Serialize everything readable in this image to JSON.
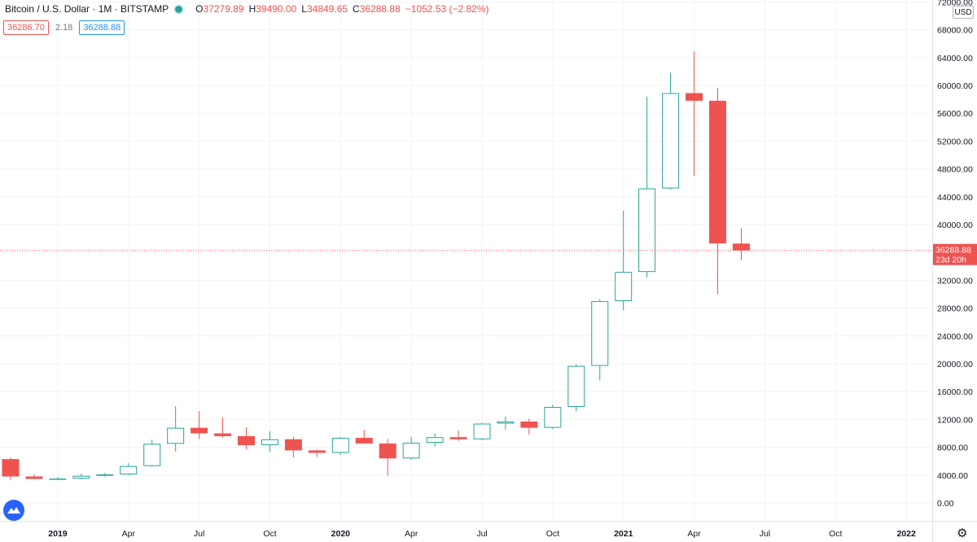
{
  "legend": {
    "symbol": "Bitcoin / U.S. Dollar · 1M · BITSTAMP",
    "o_label": "O",
    "o": "37279.89",
    "h_label": "H",
    "h": "39490.00",
    "l_label": "L",
    "l": "34849.65",
    "c_label": "C",
    "c": "36288.88",
    "change": "−1052.53 (−2.82%)"
  },
  "trade": {
    "sell": "36286.70",
    "spread": "2.18",
    "buy": "36288.88"
  },
  "currency": "USD",
  "price_label": {
    "price": "36288.88",
    "countdown": "23d 20h"
  },
  "colors": {
    "up": "#26a69a",
    "down": "#ef5350",
    "grid": "#f0f3fa",
    "axis_text": "#131722"
  },
  "chart_data": {
    "type": "candlestick",
    "x_tick_labels": [
      "2019",
      "Apr",
      "Jul",
      "Oct",
      "2020",
      "Apr",
      "Jul",
      "Oct",
      "2021",
      "Apr",
      "Jul",
      "Oct",
      "2022"
    ],
    "y_tick_labels": [
      "0.00",
      "4000.00",
      "8000.00",
      "12000.00",
      "16000.00",
      "20000.00",
      "24000.00",
      "28000.00",
      "32000.00",
      "36000.00",
      "40000.00",
      "44000.00",
      "48000.00",
      "52000.00",
      "56000.00",
      "60000.00",
      "64000.00",
      "68000.00",
      "72000.00"
    ],
    "ylim": [
      0,
      72000
    ],
    "last_price": 36288.88,
    "candles": [
      {
        "date": "2018-12",
        "open": 6300,
        "high": 6600,
        "low": 3300,
        "close": 3800
      },
      {
        "date": "2019-01",
        "open": 3800,
        "high": 4100,
        "low": 3400,
        "close": 3450
      },
      {
        "date": "2019-02",
        "open": 3450,
        "high": 3700,
        "low": 3300,
        "close": 3500
      },
      {
        "date": "2019-03",
        "open": 3500,
        "high": 4200,
        "low": 3400,
        "close": 3900
      },
      {
        "date": "2019-04",
        "open": 3900,
        "high": 4300,
        "low": 3800,
        "close": 4100
      },
      {
        "date": "2019-05",
        "open": 4100,
        "high": 5700,
        "low": 4000,
        "close": 5300
      },
      {
        "date": "2019-06",
        "open": 5300,
        "high": 9100,
        "low": 5200,
        "close": 8500
      },
      {
        "date": "2019-07",
        "open": 8500,
        "high": 13900,
        "low": 7400,
        "close": 10800
      },
      {
        "date": "2019-08",
        "open": 10800,
        "high": 13200,
        "low": 9200,
        "close": 10000
      },
      {
        "date": "2019-09",
        "open": 10000,
        "high": 12300,
        "low": 9400,
        "close": 9600
      },
      {
        "date": "2019-10",
        "open": 9600,
        "high": 10900,
        "low": 7700,
        "close": 8300
      },
      {
        "date": "2019-11",
        "open": 8300,
        "high": 10300,
        "low": 7300,
        "close": 9150
      },
      {
        "date": "2019-12",
        "open": 9150,
        "high": 9500,
        "low": 6500,
        "close": 7550
      },
      {
        "date": "2020-01",
        "open": 7550,
        "high": 7700,
        "low": 6600,
        "close": 7200
      },
      {
        "date": "2020-02",
        "open": 7200,
        "high": 9500,
        "low": 6900,
        "close": 9350
      },
      {
        "date": "2020-03",
        "open": 9350,
        "high": 10500,
        "low": 8500,
        "close": 8550
      },
      {
        "date": "2020-04",
        "open": 8550,
        "high": 9200,
        "low": 3900,
        "close": 6400
      },
      {
        "date": "2020-05",
        "open": 6400,
        "high": 9500,
        "low": 6200,
        "close": 8650
      },
      {
        "date": "2020-06",
        "open": 8650,
        "high": 10000,
        "low": 8100,
        "close": 9450
      },
      {
        "date": "2020-07",
        "open": 9450,
        "high": 10400,
        "low": 8900,
        "close": 9150
      },
      {
        "date": "2020-08",
        "open": 9150,
        "high": 11500,
        "low": 9000,
        "close": 11400
      },
      {
        "date": "2020-09",
        "open": 11400,
        "high": 12400,
        "low": 10500,
        "close": 11700
      },
      {
        "date": "2020-10",
        "open": 11700,
        "high": 12100,
        "low": 9800,
        "close": 10800
      },
      {
        "date": "2020-11",
        "open": 10800,
        "high": 14100,
        "low": 10600,
        "close": 13800
      },
      {
        "date": "2020-12",
        "open": 13800,
        "high": 19900,
        "low": 13200,
        "close": 19700
      },
      {
        "date": "2021-01",
        "open": 19700,
        "high": 29300,
        "low": 17600,
        "close": 29000
      },
      {
        "date": "2021-02",
        "open": 29000,
        "high": 42000,
        "low": 27700,
        "close": 33200
      },
      {
        "date": "2021-03",
        "open": 33200,
        "high": 58400,
        "low": 32400,
        "close": 45200
      },
      {
        "date": "2021-04",
        "open": 45200,
        "high": 61800,
        "low": 45000,
        "close": 58900
      },
      {
        "date": "2021-05",
        "open": 58900,
        "high": 64900,
        "low": 47000,
        "close": 57800
      },
      {
        "date": "2021-06",
        "open": 57800,
        "high": 59600,
        "low": 30000,
        "close": 37300
      },
      {
        "date": "2021-07",
        "open": 37279.89,
        "high": 39490.0,
        "low": 34849.65,
        "close": 36288.88
      }
    ]
  }
}
